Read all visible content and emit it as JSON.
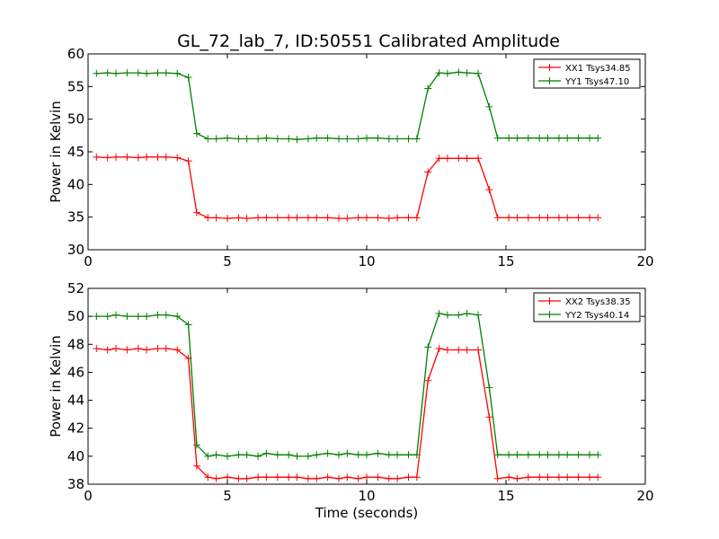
{
  "chart_data": [
    {
      "type": "line",
      "title": "GL_72_lab_7, ID:50551 Calibrated Amplitude",
      "xlabel": "",
      "ylabel": "Power in Kelvin",
      "xlim": [
        0,
        20
      ],
      "ylim": [
        30,
        60
      ],
      "xticks": [
        0,
        5,
        10,
        15,
        20
      ],
      "yticks": [
        30,
        35,
        40,
        45,
        50,
        55,
        60
      ],
      "legend_position": "top-right",
      "x": [
        0.3,
        0.7,
        1.0,
        1.4,
        1.8,
        2.1,
        2.5,
        2.8,
        3.2,
        3.6,
        3.9,
        4.3,
        4.6,
        5.0,
        5.4,
        5.7,
        6.1,
        6.4,
        6.8,
        7.2,
        7.5,
        7.9,
        8.2,
        8.6,
        9.0,
        9.3,
        9.7,
        10.0,
        10.4,
        10.8,
        11.1,
        11.5,
        11.8,
        12.2,
        12.6,
        12.9,
        13.3,
        13.6,
        14.0,
        14.4,
        14.7,
        15.1,
        15.4,
        15.8,
        16.2,
        16.5,
        16.9,
        17.2,
        17.6,
        18.0,
        18.3
      ],
      "series": [
        {
          "name": "XX1 Tsys34.85",
          "color": "#ff0000",
          "values": [
            44.2,
            44.1,
            44.2,
            44.2,
            44.1,
            44.2,
            44.2,
            44.2,
            44.1,
            43.6,
            35.7,
            34.9,
            34.9,
            34.8,
            34.9,
            34.8,
            34.9,
            34.9,
            34.9,
            34.9,
            34.9,
            34.9,
            34.9,
            34.9,
            34.8,
            34.8,
            34.9,
            34.9,
            34.9,
            34.8,
            34.9,
            34.9,
            34.9,
            41.9,
            44.0,
            44.0,
            44.0,
            44.0,
            44.0,
            39.2,
            34.9,
            34.9,
            34.9,
            34.9,
            34.9,
            34.9,
            34.9,
            34.9,
            34.9,
            34.9,
            34.9
          ]
        },
        {
          "name": "YY1 Tsys47.10",
          "color": "#008000",
          "values": [
            57.0,
            57.1,
            57.0,
            57.1,
            57.1,
            57.0,
            57.1,
            57.1,
            57.0,
            56.4,
            47.8,
            47.0,
            47.0,
            47.1,
            47.0,
            47.0,
            47.0,
            47.1,
            47.0,
            47.0,
            46.9,
            47.0,
            47.1,
            47.1,
            47.0,
            47.0,
            47.0,
            47.1,
            47.1,
            47.0,
            47.0,
            47.0,
            47.0,
            54.7,
            57.1,
            57.0,
            57.2,
            57.1,
            57.0,
            51.9,
            47.1,
            47.1,
            47.1,
            47.1,
            47.1,
            47.1,
            47.1,
            47.1,
            47.1,
            47.1,
            47.1
          ]
        }
      ]
    },
    {
      "type": "line",
      "title": "",
      "xlabel": "Time (seconds)",
      "ylabel": "Power in Kelvin",
      "xlim": [
        0,
        20
      ],
      "ylim": [
        38,
        52
      ],
      "xticks": [
        0,
        5,
        10,
        15,
        20
      ],
      "yticks": [
        38,
        40,
        42,
        44,
        46,
        48,
        50,
        52
      ],
      "legend_position": "top-right",
      "x": [
        0.3,
        0.7,
        1.0,
        1.4,
        1.8,
        2.1,
        2.5,
        2.8,
        3.2,
        3.6,
        3.9,
        4.3,
        4.6,
        5.0,
        5.4,
        5.7,
        6.1,
        6.4,
        6.8,
        7.2,
        7.5,
        7.9,
        8.2,
        8.6,
        9.0,
        9.3,
        9.7,
        10.0,
        10.4,
        10.8,
        11.1,
        11.5,
        11.8,
        12.2,
        12.6,
        12.9,
        13.3,
        13.6,
        14.0,
        14.4,
        14.7,
        15.1,
        15.4,
        15.8,
        16.2,
        16.5,
        16.9,
        17.2,
        17.6,
        18.0,
        18.3
      ],
      "series": [
        {
          "name": "XX2 Tsys38.35",
          "color": "#ff0000",
          "values": [
            47.7,
            47.6,
            47.7,
            47.6,
            47.7,
            47.6,
            47.7,
            47.7,
            47.6,
            47.0,
            39.3,
            38.5,
            38.4,
            38.5,
            38.4,
            38.4,
            38.5,
            38.5,
            38.5,
            38.5,
            38.5,
            38.4,
            38.4,
            38.5,
            38.4,
            38.5,
            38.4,
            38.5,
            38.5,
            38.4,
            38.4,
            38.5,
            38.5,
            45.4,
            47.7,
            47.6,
            47.6,
            47.6,
            47.6,
            42.8,
            38.4,
            38.5,
            38.4,
            38.5,
            38.5,
            38.5,
            38.5,
            38.5,
            38.5,
            38.5,
            38.5
          ]
        },
        {
          "name": "YY2 Tsys40.14",
          "color": "#008000",
          "values": [
            50.0,
            50.0,
            50.1,
            50.0,
            50.0,
            50.0,
            50.1,
            50.1,
            50.0,
            49.4,
            40.8,
            40.0,
            40.1,
            40.0,
            40.1,
            40.1,
            40.0,
            40.2,
            40.1,
            40.1,
            40.0,
            40.0,
            40.1,
            40.2,
            40.1,
            40.2,
            40.1,
            40.1,
            40.2,
            40.1,
            40.1,
            40.1,
            40.1,
            47.8,
            50.2,
            50.1,
            50.1,
            50.2,
            50.1,
            44.9,
            40.1,
            40.1,
            40.1,
            40.1,
            40.1,
            40.1,
            40.1,
            40.1,
            40.1,
            40.1,
            40.1
          ]
        }
      ]
    }
  ]
}
